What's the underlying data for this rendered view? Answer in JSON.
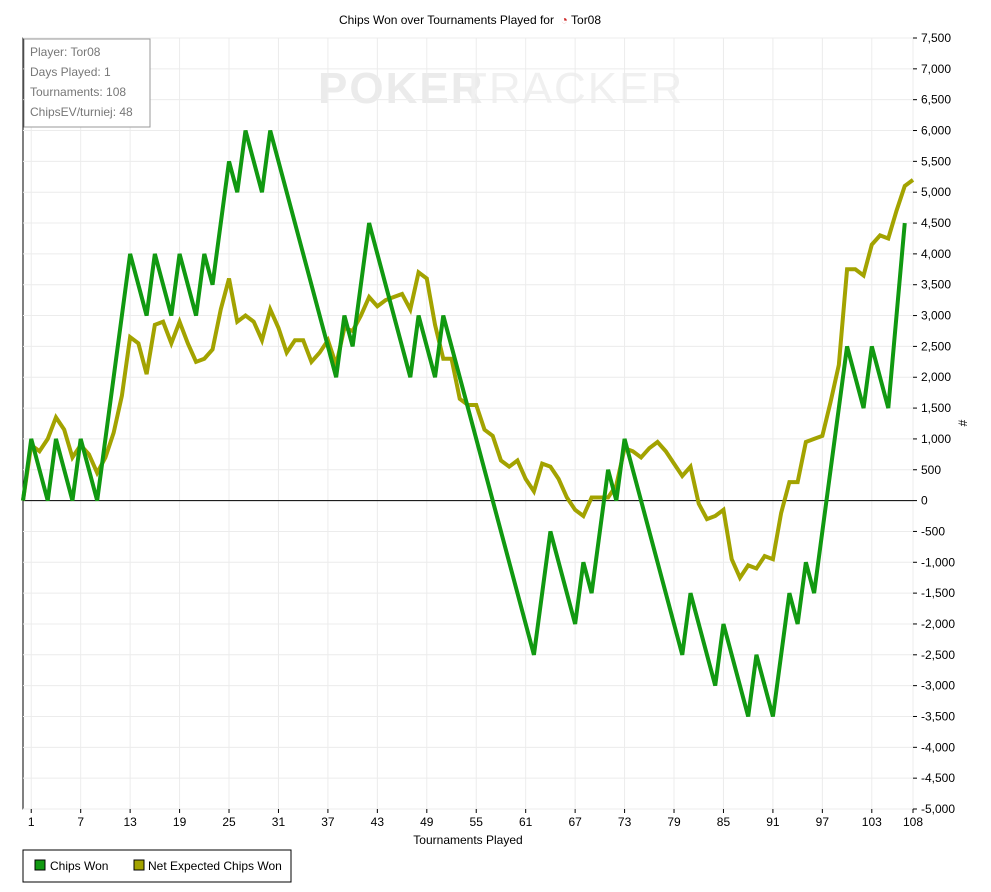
{
  "chart_data": {
    "type": "line",
    "title": "Chips Won over Tournaments Played for",
    "title_player": "Tor08",
    "xlabel": "Tournaments Played",
    "ylabel": "#",
    "xlim": [
      0,
      108
    ],
    "ylim": [
      -5000,
      7500
    ],
    "y_ticks": [
      7500,
      7000,
      6500,
      6000,
      5500,
      5000,
      4500,
      4000,
      3500,
      3000,
      2500,
      2000,
      1500,
      1000,
      500,
      0,
      -500,
      -1000,
      -1500,
      -2000,
      -2500,
      -3000,
      -3500,
      -4000,
      -4500,
      -5000
    ],
    "y_tick_labels": [
      "7,500",
      "7,000",
      "6,500",
      "6,000",
      "5,500",
      "5,000",
      "4,500",
      "4,000",
      "3,500",
      "3,000",
      "2,500",
      "2,000",
      "1,500",
      "1,000",
      "500",
      "0",
      "-500",
      "-1,000",
      "-1,500",
      "-2,000",
      "-2,500",
      "-3,000",
      "-3,500",
      "-4,000",
      "-4,500",
      "-5,000"
    ],
    "x_ticks": [
      1,
      7,
      13,
      19,
      25,
      31,
      37,
      43,
      49,
      55,
      61,
      67,
      73,
      79,
      85,
      91,
      97,
      103,
      108
    ],
    "x_tick_labels": [
      "1",
      "7",
      "13",
      "19",
      "25",
      "31",
      "37",
      "43",
      "49",
      "55",
      "61",
      "67",
      "73",
      "79",
      "85",
      "91",
      "97",
      "103",
      "108"
    ],
    "grid": true,
    "legend_position": "bottom-left",
    "watermark": {
      "left": "POKER",
      "right": "TRACKER"
    },
    "info_box": [
      "Player: Tor08",
      "Days Played: 1",
      "Tournaments: 108",
      "ChipsEV/turniej: 48"
    ],
    "series": [
      {
        "name": "Chips Won",
        "color": "#119911",
        "points": [
          [
            0,
            0
          ],
          [
            1,
            1000
          ],
          [
            3,
            0
          ],
          [
            4,
            1000
          ],
          [
            6,
            0
          ],
          [
            7,
            1000
          ],
          [
            9,
            0
          ],
          [
            13,
            4000
          ],
          [
            15,
            3000
          ],
          [
            16,
            4000
          ],
          [
            18,
            3000
          ],
          [
            19,
            4000
          ],
          [
            21,
            3000
          ],
          [
            22,
            4000
          ],
          [
            23,
            3500
          ],
          [
            25,
            5500
          ],
          [
            26,
            5000
          ],
          [
            27,
            6000
          ],
          [
            29,
            5000
          ],
          [
            30,
            6000
          ],
          [
            38,
            2000
          ],
          [
            39,
            3000
          ],
          [
            40,
            2500
          ],
          [
            42,
            4500
          ],
          [
            47,
            2000
          ],
          [
            48,
            3000
          ],
          [
            50,
            2000
          ],
          [
            51,
            3000
          ],
          [
            62,
            -2500
          ],
          [
            64,
            -500
          ],
          [
            67,
            -2000
          ],
          [
            68,
            -1000
          ],
          [
            69,
            -1500
          ],
          [
            71,
            500
          ],
          [
            72,
            0
          ],
          [
            73,
            1000
          ],
          [
            80,
            -2500
          ],
          [
            81,
            -1500
          ],
          [
            84,
            -3000
          ],
          [
            85,
            -2000
          ],
          [
            88,
            -3500
          ],
          [
            89,
            -2500
          ],
          [
            91,
            -3500
          ],
          [
            93,
            -1500
          ],
          [
            94,
            -2000
          ],
          [
            95,
            -1000
          ],
          [
            96,
            -1500
          ],
          [
            100,
            2500
          ],
          [
            102,
            1500
          ],
          [
            103,
            2500
          ],
          [
            105,
            1500
          ],
          [
            107,
            4500
          ]
        ]
      },
      {
        "name": "Net Expected Chips Won",
        "color": "#a3a300",
        "points": [
          [
            0,
            0
          ],
          [
            1,
            900
          ],
          [
            2,
            800
          ],
          [
            3,
            1000
          ],
          [
            4,
            1350
          ],
          [
            5,
            1150
          ],
          [
            6,
            700
          ],
          [
            7,
            900
          ],
          [
            8,
            750
          ],
          [
            9,
            450
          ],
          [
            10,
            700
          ],
          [
            11,
            1100
          ],
          [
            12,
            1700
          ],
          [
            13,
            2650
          ],
          [
            14,
            2550
          ],
          [
            15,
            2050
          ],
          [
            16,
            2850
          ],
          [
            17,
            2900
          ],
          [
            18,
            2550
          ],
          [
            19,
            2900
          ],
          [
            20,
            2550
          ],
          [
            21,
            2250
          ],
          [
            22,
            2300
          ],
          [
            23,
            2450
          ],
          [
            24,
            3100
          ],
          [
            25,
            3600
          ],
          [
            26,
            2900
          ],
          [
            27,
            3000
          ],
          [
            28,
            2900
          ],
          [
            29,
            2600
          ],
          [
            30,
            3100
          ],
          [
            31,
            2800
          ],
          [
            32,
            2400
          ],
          [
            33,
            2600
          ],
          [
            34,
            2600
          ],
          [
            35,
            2250
          ],
          [
            36,
            2400
          ],
          [
            37,
            2600
          ],
          [
            38,
            2200
          ],
          [
            39,
            2800
          ],
          [
            40,
            2750
          ],
          [
            41,
            3000
          ],
          [
            42,
            3300
          ],
          [
            43,
            3150
          ],
          [
            44,
            3250
          ],
          [
            45,
            3300
          ],
          [
            46,
            3350
          ],
          [
            47,
            3100
          ],
          [
            48,
            3700
          ],
          [
            49,
            3600
          ],
          [
            50,
            2850
          ],
          [
            51,
            2300
          ],
          [
            52,
            2300
          ],
          [
            53,
            1650
          ],
          [
            54,
            1550
          ],
          [
            55,
            1550
          ],
          [
            56,
            1150
          ],
          [
            57,
            1050
          ],
          [
            58,
            650
          ],
          [
            59,
            550
          ],
          [
            60,
            650
          ],
          [
            61,
            350
          ],
          [
            62,
            150
          ],
          [
            63,
            600
          ],
          [
            64,
            550
          ],
          [
            65,
            350
          ],
          [
            66,
            50
          ],
          [
            67,
            -150
          ],
          [
            68,
            -250
          ],
          [
            69,
            50
          ],
          [
            70,
            50
          ],
          [
            71,
            50
          ],
          [
            72,
            250
          ],
          [
            73,
            850
          ],
          [
            74,
            800
          ],
          [
            75,
            700
          ],
          [
            76,
            850
          ],
          [
            77,
            950
          ],
          [
            78,
            800
          ],
          [
            79,
            600
          ],
          [
            80,
            400
          ],
          [
            81,
            550
          ],
          [
            82,
            -50
          ],
          [
            83,
            -300
          ],
          [
            84,
            -250
          ],
          [
            85,
            -150
          ],
          [
            86,
            -950
          ],
          [
            87,
            -1250
          ],
          [
            88,
            -1050
          ],
          [
            89,
            -1100
          ],
          [
            90,
            -900
          ],
          [
            91,
            -950
          ],
          [
            92,
            -200
          ],
          [
            93,
            300
          ],
          [
            94,
            300
          ],
          [
            95,
            950
          ],
          [
            96,
            1000
          ],
          [
            97,
            1050
          ],
          [
            98,
            1600
          ],
          [
            99,
            2200
          ],
          [
            100,
            3750
          ],
          [
            101,
            3750
          ],
          [
            102,
            3650
          ],
          [
            103,
            4150
          ],
          [
            104,
            4300
          ],
          [
            105,
            4250
          ],
          [
            106,
            4700
          ],
          [
            107,
            5100
          ],
          [
            108,
            5200
          ]
        ]
      }
    ]
  }
}
